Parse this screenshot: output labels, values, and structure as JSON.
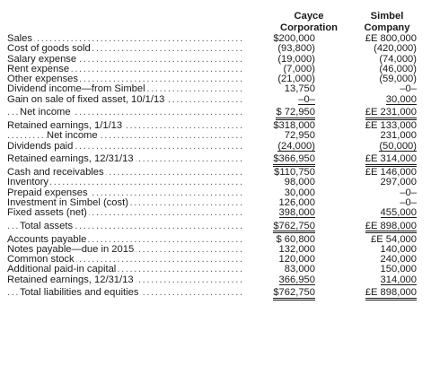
{
  "columns": {
    "cayce": [
      "Cayce",
      "Corporation"
    ],
    "simbel": [
      "Simbel",
      "Company"
    ]
  },
  "rows": [
    {
      "label": "Sales",
      "cayce": "$200,000",
      "simbel": "£E 800,000"
    },
    {
      "label": "Cost of goods sold",
      "cayce": "(93,800)",
      "simbel": "(420,000)"
    },
    {
      "label": "Salary expense",
      "cayce": "(19,000)",
      "simbel": "(74,000)"
    },
    {
      "label": "Rent expense",
      "cayce": "(7,000)",
      "simbel": "(46,000)"
    },
    {
      "label": "Other expenses",
      "cayce": "(21,000)",
      "simbel": "(59,000)"
    },
    {
      "label": "Dividend income—from Simbel",
      "cayce": "13,750",
      "simbel": "–0–"
    },
    {
      "label": "Gain on sale of fixed asset, 10/1/13",
      "cayce": "–0–",
      "simbel": "30,000"
    },
    {
      "label": "Net income",
      "cayce": "$ 72,950",
      "simbel": "£E 231,000"
    },
    {
      "label": "Retained earnings, 1/1/13",
      "cayce": "$318,000",
      "simbel": "£E 133,000"
    },
    {
      "label": "Net income",
      "cayce": "72,950",
      "simbel": "231,000"
    },
    {
      "label": "Dividends paid",
      "cayce": "(24,000)",
      "simbel": "(50,000)"
    },
    {
      "label": "Retained earnings, 12/31/13",
      "cayce": "$366,950",
      "simbel": "£E 314,000"
    },
    {
      "label": "Cash and receivables",
      "cayce": "$110,750",
      "simbel": "£E 146,000"
    },
    {
      "label": "Inventory",
      "cayce": "98,000",
      "simbel": "297,000"
    },
    {
      "label": "Prepaid expenses",
      "cayce": "30,000",
      "simbel": "–0–"
    },
    {
      "label": "Investment in Simbel (cost)",
      "cayce": "126,000",
      "simbel": "–0–"
    },
    {
      "label": "Fixed assets (net)",
      "cayce": "398,000",
      "simbel": "455,000"
    },
    {
      "label": "Total assets",
      "cayce": "$762,750",
      "simbel": "£E 898,000"
    },
    {
      "label": "Accounts payable",
      "cayce": "$ 60,800",
      "simbel": "£E 54,000"
    },
    {
      "label": "Notes payable—due in 2015",
      "cayce": "132,000",
      "simbel": "140,000"
    },
    {
      "label": "Common stock",
      "cayce": "120,000",
      "simbel": "240,000"
    },
    {
      "label": "Additional paid-in capital",
      "cayce": "83,000",
      "simbel": "150,000"
    },
    {
      "label": "Retained earnings, 12/31/13",
      "cayce": "366,950",
      "simbel": "314,000"
    },
    {
      "label": "Total liabilities and equities",
      "cayce": "$762,750",
      "simbel": "£E 898,000"
    }
  ]
}
